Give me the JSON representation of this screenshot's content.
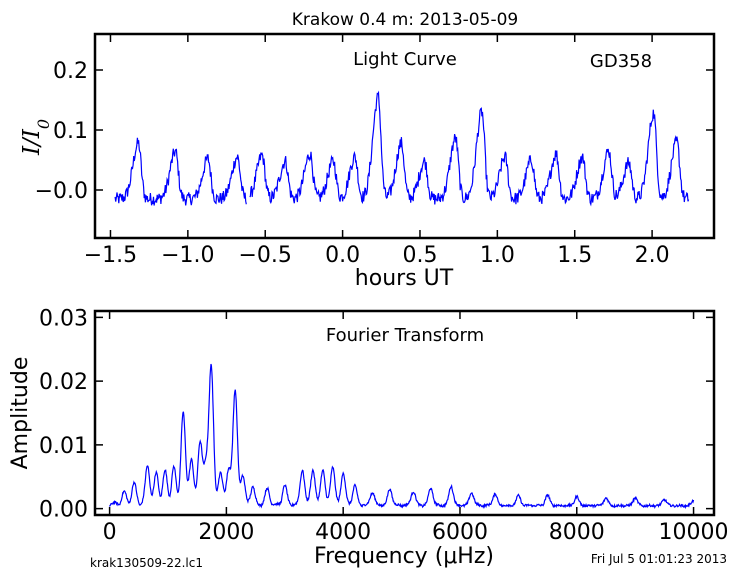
{
  "title": "Krakow 0.4 m:  2013-05-09",
  "footer_left": "krak130509-22.lc1",
  "footer_right": "Fri Jul  5 01:01:23 2013",
  "colors": {
    "line": "#0000ff",
    "axes": "#000000"
  },
  "chart_data": [
    {
      "type": "line",
      "annotation": "Light Curve",
      "annotation_star": "GD358",
      "xlabel": "hours UT",
      "ylabel": "I/I0",
      "xlim": [
        -1.6,
        2.4
      ],
      "ylim": [
        -0.08,
        0.26
      ],
      "xticks": [
        "−1.5",
        "−1.0",
        "−0.5",
        "0.0",
        "0.5",
        "1.0",
        "1.5",
        "2.0"
      ],
      "xtick_values": [
        -1.5,
        -1.0,
        -0.5,
        0.0,
        0.5,
        1.0,
        1.5,
        2.0
      ],
      "yticks": [
        "−0.0",
        "0.1",
        "0.2"
      ],
      "ytick_values": [
        0.0,
        0.1,
        0.2
      ],
      "grid": false,
      "segments": [
        [
          -1.47,
          -0.62
        ],
        [
          -0.6,
          2.24
        ]
      ],
      "peaks": [
        [
          -1.32,
          0.078
        ],
        [
          -1.08,
          0.064
        ],
        [
          -0.87,
          0.052
        ],
        [
          -0.68,
          0.055
        ],
        [
          -0.52,
          0.058
        ],
        [
          -0.37,
          0.048
        ],
        [
          -0.21,
          0.06
        ],
        [
          -0.06,
          0.048
        ],
        [
          0.08,
          0.055
        ],
        [
          0.23,
          0.155
        ],
        [
          0.38,
          0.078
        ],
        [
          0.53,
          0.048
        ],
        [
          0.73,
          0.086
        ],
        [
          0.9,
          0.13
        ],
        [
          1.05,
          0.055
        ],
        [
          1.22,
          0.05
        ],
        [
          1.38,
          0.06
        ],
        [
          1.55,
          0.055
        ],
        [
          1.72,
          0.065
        ],
        [
          1.85,
          0.045
        ],
        [
          2.01,
          0.128
        ],
        [
          2.16,
          0.08
        ]
      ],
      "baseline": -0.015
    },
    {
      "type": "line",
      "annotation": "Fourier Transform",
      "xlabel": "Frequency (μHz)",
      "ylabel": "Amplitude",
      "xlim": [
        -250,
        10350
      ],
      "ylim": [
        -0.001,
        0.031
      ],
      "xticks": [
        "0",
        "2000",
        "4000",
        "6000",
        "8000",
        "10000"
      ],
      "xtick_values": [
        0,
        2000,
        4000,
        6000,
        8000,
        10000
      ],
      "yticks": [
        "0.00",
        "0.01",
        "0.02",
        "0.03"
      ],
      "ytick_values": [
        0.0,
        0.01,
        0.02,
        0.03
      ],
      "grid": false,
      "peaks": [
        [
          250,
          0.0018
        ],
        [
          420,
          0.0032
        ],
        [
          650,
          0.006
        ],
        [
          800,
          0.0048
        ],
        [
          950,
          0.0052
        ],
        [
          1100,
          0.0058
        ],
        [
          1260,
          0.0144
        ],
        [
          1400,
          0.0072
        ],
        [
          1550,
          0.01
        ],
        [
          1650,
          0.0058
        ],
        [
          1740,
          0.0218
        ],
        [
          1900,
          0.0052
        ],
        [
          2040,
          0.0055
        ],
        [
          2150,
          0.0178
        ],
        [
          2280,
          0.0045
        ],
        [
          2450,
          0.0028
        ],
        [
          2700,
          0.0025
        ],
        [
          3000,
          0.003
        ],
        [
          3300,
          0.0055
        ],
        [
          3480,
          0.0055
        ],
        [
          3650,
          0.0055
        ],
        [
          3820,
          0.006
        ],
        [
          4000,
          0.005
        ],
        [
          4200,
          0.003
        ],
        [
          4500,
          0.002
        ],
        [
          4800,
          0.0025
        ],
        [
          5200,
          0.0022
        ],
        [
          5500,
          0.0027
        ],
        [
          5850,
          0.003
        ],
        [
          6200,
          0.002
        ],
        [
          6600,
          0.0018
        ],
        [
          7000,
          0.0015
        ],
        [
          7500,
          0.0016
        ],
        [
          8000,
          0.0014
        ],
        [
          8500,
          0.0012
        ],
        [
          9000,
          0.0012
        ],
        [
          9500,
          0.001
        ],
        [
          10000,
          0.0008
        ]
      ]
    }
  ]
}
